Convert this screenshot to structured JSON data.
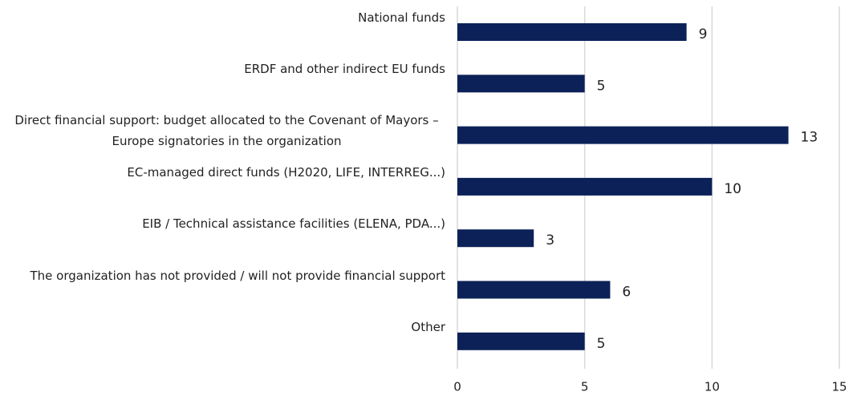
{
  "chart_data": {
    "type": "bar",
    "orientation": "horizontal",
    "categories": [
      "National funds",
      "ERDF and other indirect EU funds",
      "Direct financial support: budget allocated to the Covenant of Mayors – Europe signatories in the organization",
      "EC-managed direct funds (H2020, LIFE, INTERREG...)",
      "EIB / Technical assistance facilities (ELENA, PDA...)",
      "The organization has not provided / will not provide financial support",
      "Other"
    ],
    "values": [
      9,
      5,
      13,
      10,
      3,
      6,
      5
    ],
    "color": "#0c2157",
    "xlim": [
      0,
      15
    ],
    "xticks": [
      0,
      5,
      10,
      15
    ],
    "grid": true
  }
}
